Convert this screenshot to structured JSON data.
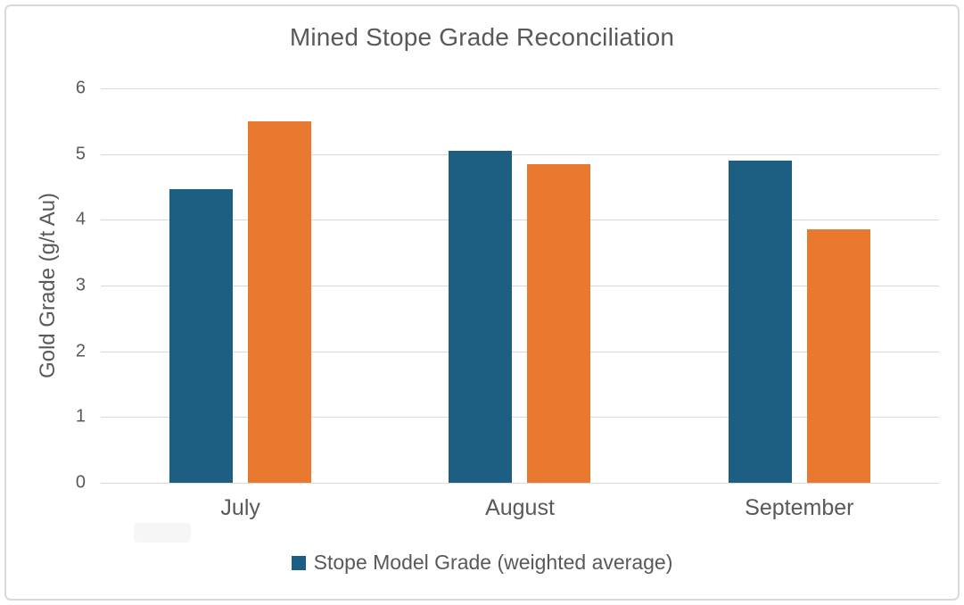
{
  "chart": {
    "background": "#ffffff",
    "frame_border_color": "#d9d9d9",
    "text_color": "#595959"
  },
  "chart_data": {
    "type": "bar",
    "title": "Mined Stope Grade Reconciliation",
    "xlabel": "",
    "ylabel": "Gold Grade (g/t Au)",
    "categories": [
      "July",
      "August",
      "September"
    ],
    "series": [
      {
        "name": "Stope Model Grade (weighted average)",
        "color": "#1c5f82",
        "values": [
          4.47,
          5.05,
          4.9
        ]
      },
      {
        "name": "",
        "color": "#e9792f",
        "values": [
          5.5,
          4.84,
          3.86
        ]
      }
    ],
    "ylim": [
      0,
      6
    ],
    "yticks": [
      0,
      1,
      2,
      3,
      4,
      5,
      6
    ],
    "grid": true,
    "gridline_color": "#d9d9d9",
    "legend_position": "bottom"
  },
  "legend": {
    "items": [
      {
        "label": "Stope Model Grade (weighted average)",
        "color": "#1c5f82"
      }
    ]
  }
}
